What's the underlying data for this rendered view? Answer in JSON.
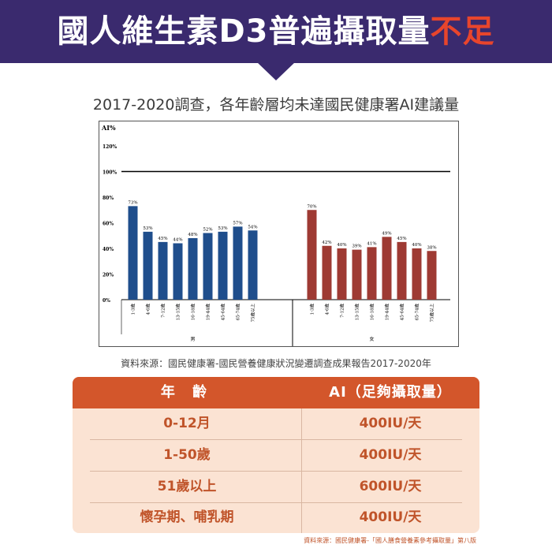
{
  "banner": {
    "title_main": "國人維生素D3普遍攝取量",
    "title_accent": "不足"
  },
  "subtitle": "2017-2020調查，各年齡層均未達國民健康署AI建議量",
  "chart_data": {
    "type": "bar",
    "ylabel": "AI%",
    "ylim": [
      0,
      120
    ],
    "y_ticks": [
      "0%",
      "20%",
      "40%",
      "60%",
      "80%",
      "100%",
      "120%"
    ],
    "reference_line": 100,
    "groups": [
      {
        "name": "男",
        "color": "#1f4e8c",
        "categories": [
          "1-3歲",
          "4-6歲",
          "7-12歲",
          "13-15歲",
          "16-18歲",
          "19-44歲",
          "45-64歲",
          "65-74歲",
          "75歲以上"
        ],
        "values": [
          73,
          53,
          45,
          44,
          48,
          52,
          53,
          57,
          54
        ],
        "labels": [
          "73%",
          "53%",
          "45%",
          "44%",
          "48%",
          "52%",
          "53%",
          "57%",
          "54%"
        ]
      },
      {
        "name": "女",
        "color": "#9e3a33",
        "categories": [
          "1-3歲",
          "4-6歲",
          "7-12歲",
          "13-15歲",
          "16-18歲",
          "19-44歲",
          "45-64歲",
          "65-74歲",
          "75歲以上"
        ],
        "values": [
          70,
          42,
          40,
          39,
          41,
          49,
          45,
          40,
          38
        ],
        "labels": [
          "70%",
          "42%",
          "40%",
          "39%",
          "41%",
          "49%",
          "45%",
          "40%",
          "38%"
        ]
      }
    ]
  },
  "source": "資料來源：國民健康署-國民營養健康狀況變遷調查成果報告2017-2020年",
  "table": {
    "headers": [
      "年 齡",
      "AI（足夠攝取量）"
    ],
    "rows": [
      [
        "0-12月",
        "400IU/天"
      ],
      [
        "1-50歲",
        "400IU/天"
      ],
      [
        "51歲以上",
        "600IU/天"
      ],
      [
        "懷孕期、哺乳期",
        "400IU/天"
      ]
    ]
  },
  "footnote": "資料來源：國民健康署-「國人膳食營養素參考攝取量」第八版"
}
